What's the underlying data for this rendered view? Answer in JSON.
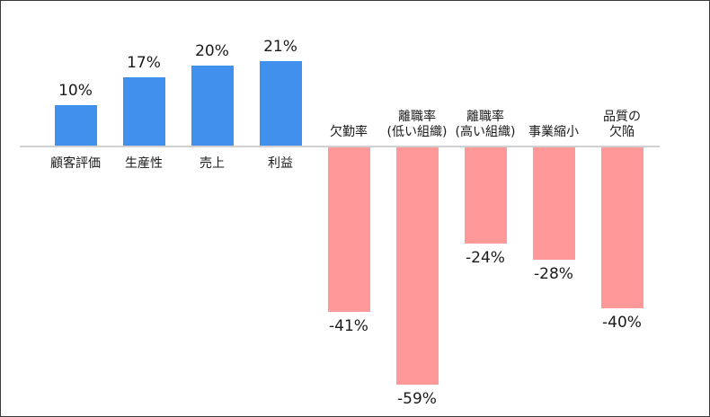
{
  "chart_data": {
    "type": "bar",
    "title": "",
    "xlabel": "",
    "ylabel": "",
    "ylim": [
      -60,
      25
    ],
    "grid": false,
    "legend": null,
    "categories": [
      "顧客評価",
      "生産性",
      "売上",
      "利益",
      "欠勤率",
      "離職率\n(低い組織)",
      "離職率\n(高い組織)",
      "事業縮小",
      "品質の\n欠陥"
    ],
    "values": [
      10,
      17,
      20,
      21,
      -41,
      -59,
      -24,
      -28,
      -40
    ],
    "value_labels": [
      "10%",
      "17%",
      "20%",
      "21%",
      "-41%",
      "-59%",
      "-24%",
      "-28%",
      "-40%"
    ],
    "colors": {
      "positive": "#4190ee",
      "negative": "#ff9999",
      "axis": "#d0d0d0"
    }
  }
}
